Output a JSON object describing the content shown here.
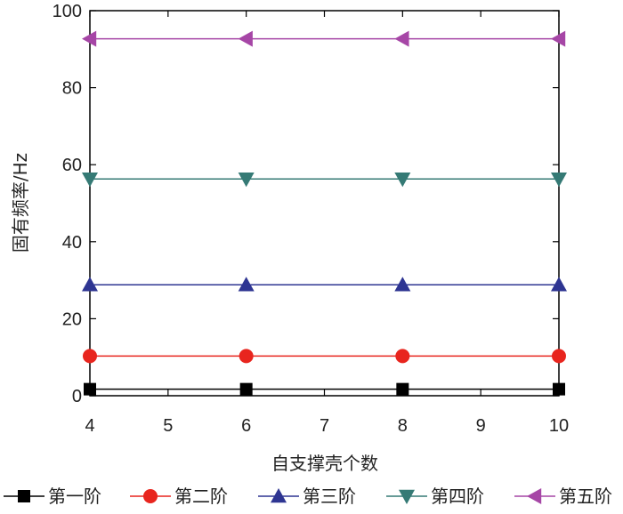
{
  "chart_data": {
    "type": "line",
    "xlabel": "自支撑壳个数",
    "ylabel": "固有频率/Hz",
    "x": [
      4,
      6,
      8,
      10
    ],
    "xlim": [
      4,
      10
    ],
    "ylim": [
      0,
      100
    ],
    "xticks": [
      4,
      5,
      6,
      7,
      8,
      9,
      10
    ],
    "yticks": [
      0,
      20,
      40,
      60,
      80,
      100
    ],
    "grid": false,
    "legend_position": "bottom",
    "series": [
      {
        "name": "第一阶",
        "values": [
          1.7,
          1.7,
          1.7,
          1.7
        ],
        "color": "#000000",
        "marker": "square"
      },
      {
        "name": "第二阶",
        "values": [
          10.3,
          10.3,
          10.3,
          10.3
        ],
        "color": "#e8251e",
        "marker": "circle"
      },
      {
        "name": "第三阶",
        "values": [
          28.8,
          28.8,
          28.8,
          28.8
        ],
        "color": "#2e3592",
        "marker": "triangle-up"
      },
      {
        "name": "第四阶",
        "values": [
          56.3,
          56.3,
          56.3,
          56.3
        ],
        "color": "#357a75",
        "marker": "triangle-down"
      },
      {
        "name": "第五阶",
        "values": [
          92.7,
          92.7,
          92.7,
          92.7
        ],
        "color": "#a646a6",
        "marker": "triangle-left"
      }
    ]
  }
}
